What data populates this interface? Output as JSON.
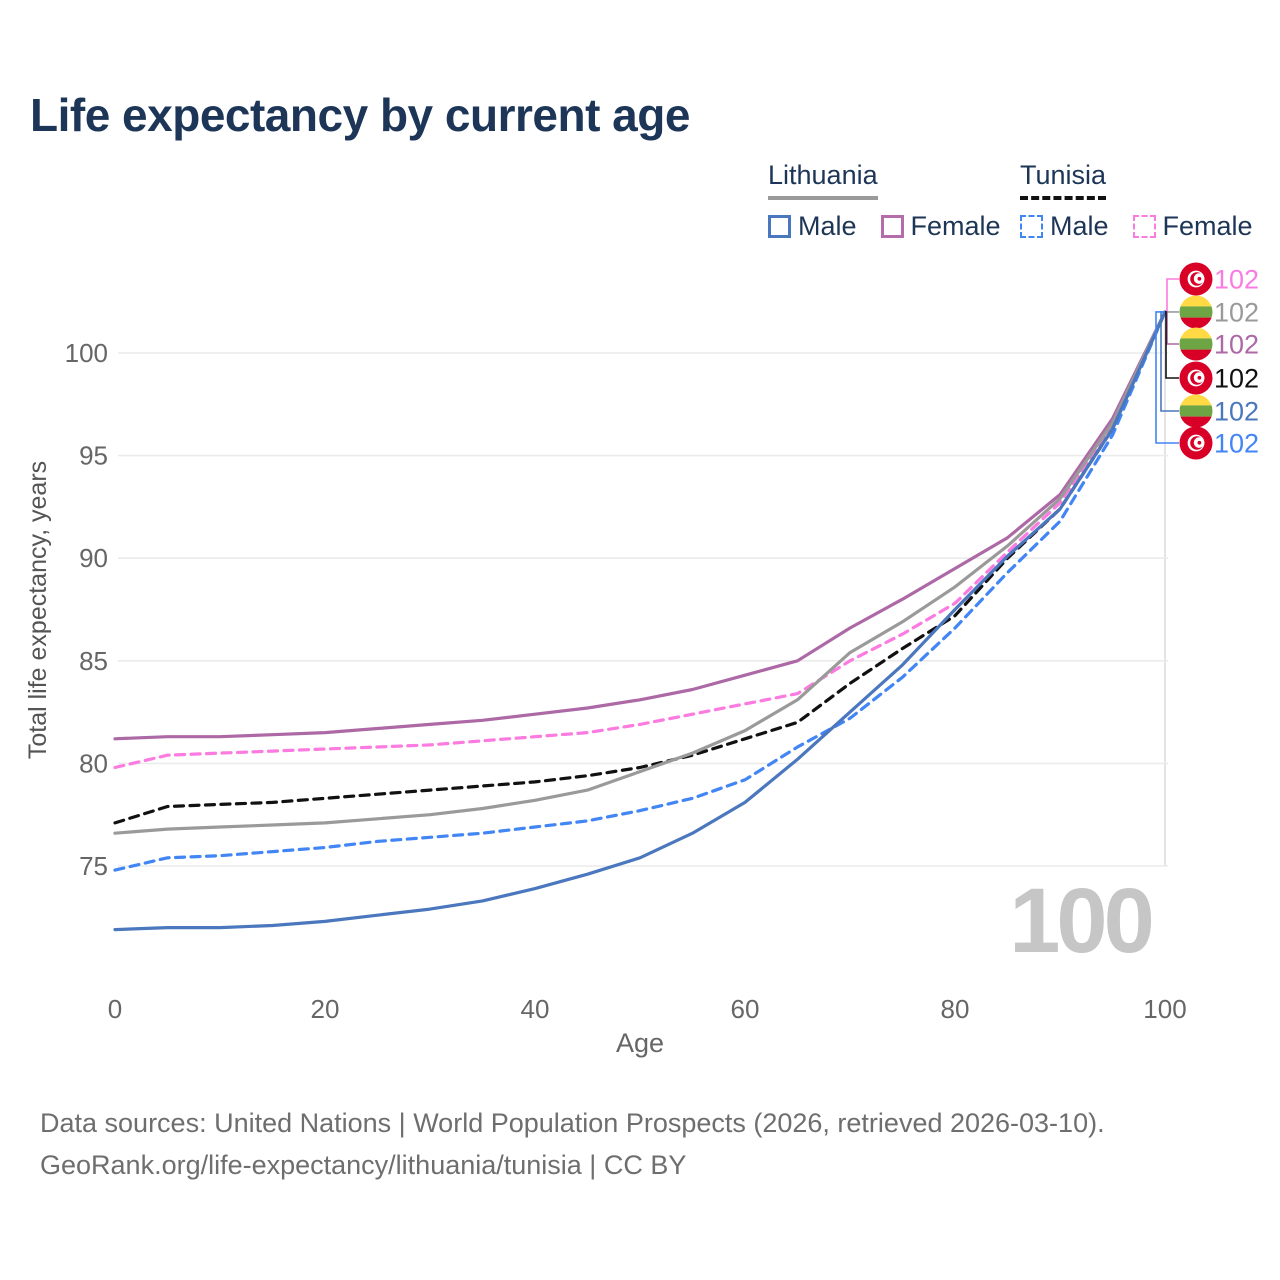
{
  "title": "Life expectancy by current age",
  "legend": {
    "groups": [
      {
        "name": "Lithuania",
        "line_style": "solid",
        "underline_color": "#9a9a9a",
        "items": [
          {
            "label": "Male",
            "color": "#4a77bd"
          },
          {
            "label": "Female",
            "color": "#b56cab"
          }
        ]
      },
      {
        "name": "Tunisia",
        "line_style": "dashed",
        "underline_color": "#111111",
        "items": [
          {
            "label": "Male",
            "color": "#4285f4"
          },
          {
            "label": "Female",
            "color": "#fb7be0"
          }
        ]
      }
    ]
  },
  "chart_data": {
    "type": "line",
    "title": "Life expectancy by current age",
    "xlabel": "Age",
    "ylabel": "Total life expectancy, years",
    "x": [
      0,
      5,
      10,
      15,
      20,
      25,
      30,
      35,
      40,
      45,
      50,
      55,
      60,
      65,
      70,
      75,
      80,
      85,
      90,
      95,
      100
    ],
    "xticks": [
      0,
      20,
      40,
      60,
      80,
      100
    ],
    "yticks": [
      75,
      80,
      85,
      90,
      95,
      100
    ],
    "xlim": [
      0,
      100
    ],
    "ylim": [
      71,
      102.5
    ],
    "grid": "horizontal",
    "legend_position": "top-right",
    "hover_age_indicator": 100,
    "watermark": "100",
    "series": [
      {
        "name": "Lithuania Female",
        "country": "Lithuania",
        "sex": "Female",
        "color": "#ad68a6",
        "dash": false,
        "end_label": "102",
        "values": [
          81.2,
          81.3,
          81.3,
          81.4,
          81.5,
          81.7,
          81.9,
          82.1,
          82.4,
          82.7,
          83.1,
          83.6,
          84.3,
          85.0,
          86.6,
          88.0,
          89.5,
          91.0,
          93.1,
          96.8,
          102
        ]
      },
      {
        "name": "Tunisia Female",
        "country": "Tunisia",
        "sex": "Female",
        "color": "#fb7be0",
        "dash": true,
        "end_label": "102",
        "values": [
          79.8,
          80.4,
          80.5,
          80.6,
          80.7,
          80.8,
          80.9,
          81.1,
          81.3,
          81.5,
          81.9,
          82.4,
          82.9,
          83.4,
          85.0,
          86.3,
          87.8,
          90.3,
          92.7,
          96.5,
          102
        ]
      },
      {
        "name": "Tunisia Both sexes",
        "country": "Tunisia",
        "sex": "Both",
        "color": "#111111",
        "dash": true,
        "end_label": "102",
        "values": [
          77.1,
          77.9,
          78.0,
          78.1,
          78.3,
          78.5,
          78.7,
          78.9,
          79.1,
          79.4,
          79.8,
          80.4,
          81.2,
          82.0,
          83.9,
          85.6,
          87.2,
          90.0,
          92.4,
          96.3,
          102
        ]
      },
      {
        "name": "Lithuania Both sexes",
        "country": "Lithuania",
        "sex": "Both",
        "color": "#9a9a9a",
        "dash": false,
        "end_label": "102",
        "values": [
          76.6,
          76.8,
          76.9,
          77.0,
          77.1,
          77.3,
          77.5,
          77.8,
          78.2,
          78.7,
          79.6,
          80.5,
          81.6,
          83.1,
          85.4,
          86.9,
          88.6,
          90.6,
          92.9,
          96.6,
          102
        ]
      },
      {
        "name": "Tunisia Male",
        "country": "Tunisia",
        "sex": "Male",
        "color": "#4285f4",
        "dash": true,
        "end_label": "102",
        "values": [
          74.8,
          75.4,
          75.5,
          75.7,
          75.9,
          76.2,
          76.4,
          76.6,
          76.9,
          77.2,
          77.7,
          78.3,
          79.2,
          80.8,
          82.2,
          84.2,
          86.6,
          89.3,
          91.8,
          96.0,
          102
        ]
      },
      {
        "name": "Lithuania Male",
        "country": "Lithuania",
        "sex": "Male",
        "color": "#4a77bd",
        "dash": false,
        "end_label": "102",
        "values": [
          71.9,
          72.0,
          72.0,
          72.1,
          72.3,
          72.6,
          72.9,
          73.3,
          73.9,
          74.6,
          75.4,
          76.6,
          78.1,
          80.2,
          82.5,
          84.8,
          87.5,
          90.1,
          92.4,
          96.3,
          102
        ]
      }
    ],
    "end_labels_top_to_bottom": [
      {
        "series": "Tunisia Female",
        "flag": "tunisia",
        "color": "#fb7be0",
        "text": "102"
      },
      {
        "series": "Lithuania Both sexes",
        "flag": "lithuania",
        "color": "#9a9a9a",
        "text": "102"
      },
      {
        "series": "Lithuania Female",
        "flag": "lithuania",
        "color": "#ad68a6",
        "text": "102"
      },
      {
        "series": "Tunisia Both sexes",
        "flag": "tunisia",
        "color": "#111111",
        "text": "102"
      },
      {
        "series": "Lithuania Male",
        "flag": "lithuania",
        "color": "#4a77bd",
        "text": "102"
      },
      {
        "series": "Tunisia Male",
        "flag": "tunisia",
        "color": "#4285f4",
        "text": "102"
      }
    ],
    "flag_colors": {
      "lithuania": [
        "#FFDA44",
        "#6DA544",
        "#D80027"
      ],
      "tunisia": "#D80027"
    }
  },
  "footer": {
    "line1": "Data sources: United Nations | World Population Prospects (2026, retrieved 2026-03-10).",
    "line2": "GeoRank.org/life-expectancy/lithuania/tunisia | CC BY"
  }
}
